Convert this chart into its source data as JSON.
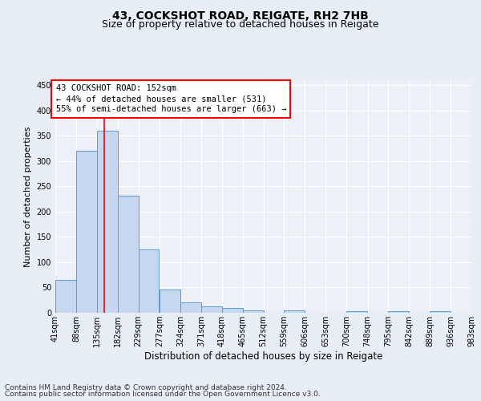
{
  "title1": "43, COCKSHOT ROAD, REIGATE, RH2 7HB",
  "title2": "Size of property relative to detached houses in Reigate",
  "xlabel": "Distribution of detached houses by size in Reigate",
  "ylabel": "Number of detached properties",
  "bin_edges": [
    41,
    88,
    135,
    182,
    229,
    277,
    324,
    371,
    418,
    465,
    512,
    559,
    606,
    653,
    700,
    748,
    795,
    842,
    889,
    936,
    983
  ],
  "bin_labels": [
    "41sqm",
    "88sqm",
    "135sqm",
    "182sqm",
    "229sqm",
    "277sqm",
    "324sqm",
    "371sqm",
    "418sqm",
    "465sqm",
    "512sqm",
    "559sqm",
    "606sqm",
    "653sqm",
    "700sqm",
    "748sqm",
    "795sqm",
    "842sqm",
    "889sqm",
    "936sqm",
    "983sqm"
  ],
  "bar_heights": [
    65,
    320,
    360,
    232,
    126,
    46,
    21,
    13,
    9,
    4,
    0,
    4,
    0,
    0,
    3,
    0,
    3,
    0,
    3,
    0,
    3
  ],
  "bar_color": "#c5d8f0",
  "bar_edge_color": "#5b9bd5",
  "property_line_x": 152,
  "property_line_color": "red",
  "annotation_line1": "43 COCKSHOT ROAD: 152sqm",
  "annotation_line2": "← 44% of detached houses are smaller (531)",
  "annotation_line3": "55% of semi-detached houses are larger (663) →",
  "annotation_box_color": "white",
  "annotation_box_edge_color": "red",
  "ylim": [
    0,
    460
  ],
  "yticks": [
    0,
    50,
    100,
    150,
    200,
    250,
    300,
    350,
    400,
    450
  ],
  "footer1": "Contains HM Land Registry data © Crown copyright and database right 2024.",
  "footer2": "Contains public sector information licensed under the Open Government Licence v3.0.",
  "bg_color": "#e8eef5",
  "plot_bg_color": "#edf1f7",
  "grid_color": "#ffffff",
  "title1_fontsize": 10,
  "title2_fontsize": 9,
  "axis_label_fontsize": 8,
  "tick_fontsize": 7,
  "annotation_fontsize": 7.5,
  "footer_fontsize": 6.5
}
